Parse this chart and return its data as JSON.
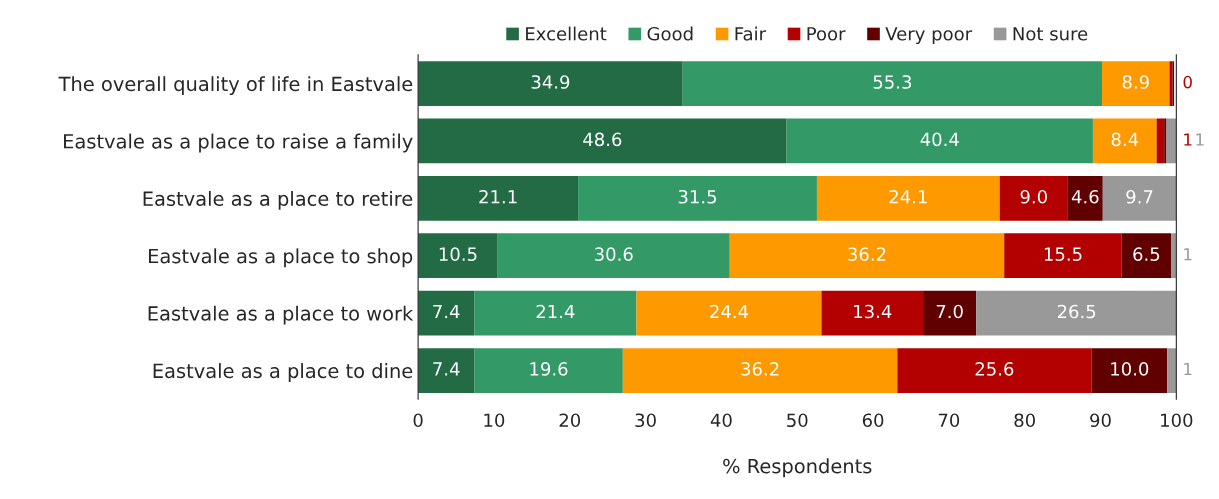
{
  "chart_data": {
    "type": "bar",
    "orientation": "horizontal",
    "stacked": true,
    "xlabel": "% Respondents",
    "categories": [
      "The overall quality of life in Eastvale",
      "Eastvale as a place to raise a family",
      "Eastvale as a place to retire",
      "Eastvale as a place to shop",
      "Eastvale as a place to work",
      "Eastvale as a place to dine"
    ],
    "series": [
      {
        "name": "Excellent",
        "color": "#236b45",
        "values": [
          34.9,
          48.6,
          21.1,
          10.5,
          7.4,
          7.4
        ],
        "value_labels": [
          "34.9",
          "48.6",
          "21.1",
          "10.5",
          "7.4",
          "7.4"
        ]
      },
      {
        "name": "Good",
        "color": "#339966",
        "values": [
          55.3,
          40.4,
          31.5,
          30.6,
          21.4,
          19.6
        ],
        "value_labels": [
          "55.3",
          "40.4",
          "31.5",
          "30.6",
          "21.4",
          "19.6"
        ]
      },
      {
        "name": "Fair",
        "color": "#ff9900",
        "values": [
          8.9,
          8.4,
          24.1,
          36.2,
          24.4,
          36.2
        ],
        "value_labels": [
          "8.9",
          "8.4",
          "24.1",
          "36.2",
          "24.4",
          "36.2"
        ]
      },
      {
        "name": "Poor",
        "color": "#b30000",
        "values": [
          0.4,
          1.0,
          9.0,
          15.5,
          13.4,
          25.6
        ],
        "value_labels": [
          "0",
          "1",
          "9.0",
          "15.5",
          "13.4",
          "25.6"
        ]
      },
      {
        "name": "Very poor",
        "color": "#600000",
        "values": [
          0.2,
          0.3,
          4.6,
          6.5,
          7.0,
          10.0
        ],
        "value_labels": [
          null,
          null,
          "4.6",
          "6.5",
          "7.0",
          "10.0"
        ]
      },
      {
        "name": "Not sure",
        "color": "#999999",
        "values": [
          0,
          1.3,
          9.7,
          0.7,
          26.5,
          1.2
        ],
        "value_labels": [
          null,
          "1",
          "9.7",
          "1",
          "26.5",
          "1"
        ]
      }
    ],
    "xlim": [
      0,
      100
    ],
    "xticks": [
      0,
      10,
      20,
      30,
      40,
      50,
      60,
      70,
      80,
      90,
      100
    ],
    "grid": false,
    "legend": "top"
  }
}
